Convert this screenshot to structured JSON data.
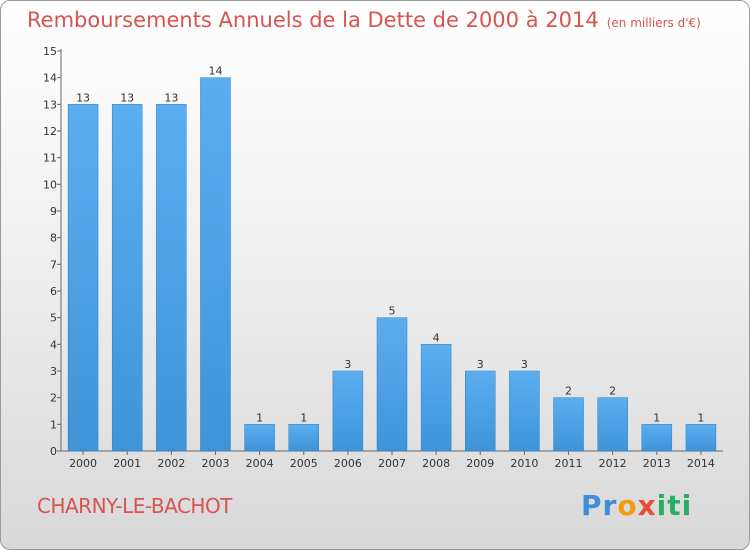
{
  "chart_data": {
    "type": "bar",
    "title": "Remboursements Annuels de la Dette de 2000 à 2014",
    "subtitle": "(en milliers d'€)",
    "categories": [
      "2000",
      "2001",
      "2002",
      "2003",
      "2004",
      "2005",
      "2006",
      "2007",
      "2008",
      "2009",
      "2010",
      "2011",
      "2012",
      "2013",
      "2014"
    ],
    "values": [
      13,
      13,
      13,
      14,
      1,
      1,
      3,
      5,
      4,
      3,
      3,
      2,
      2,
      1,
      1
    ],
    "ylim": [
      0,
      15
    ],
    "yticks": [
      0,
      1,
      2,
      3,
      4,
      5,
      6,
      7,
      8,
      9,
      10,
      11,
      12,
      13,
      14,
      15
    ],
    "xlabel": "",
    "ylabel": "",
    "bar_color": "#3f94d8",
    "grid": false
  },
  "footer": {
    "commune": "CHARNY-LE-BACHOT",
    "logo_letters": [
      "P",
      "r",
      "o",
      "x",
      "i",
      "t",
      "i"
    ],
    "logo_colors": [
      "#3d8ed6",
      "#3d8ed6",
      "#f39c12",
      "#e74c3c",
      "#27ae60",
      "#27ae60",
      "#27ae60"
    ]
  }
}
